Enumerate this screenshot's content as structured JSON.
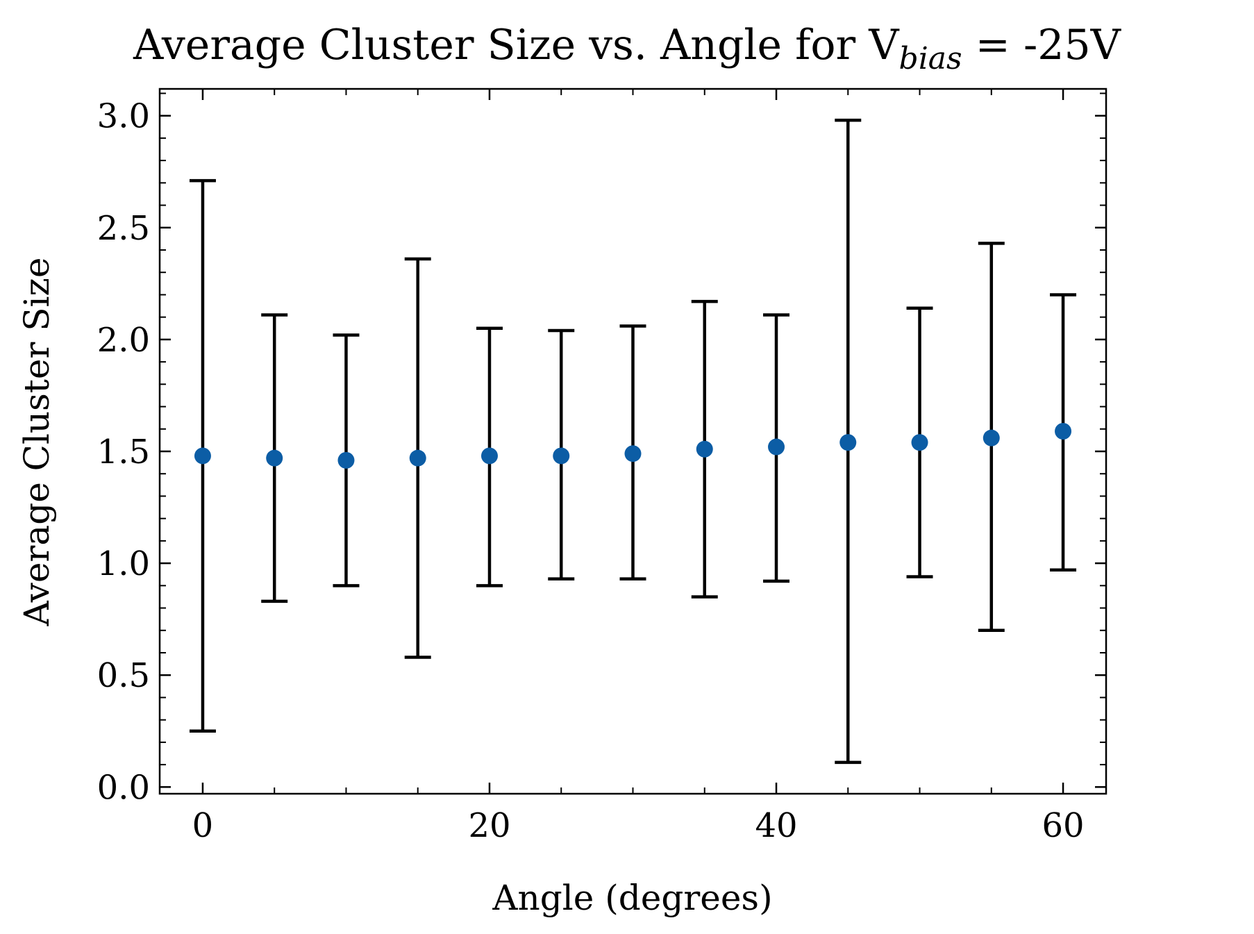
{
  "chart_data": {
    "type": "scatter",
    "title": "Average Cluster Size vs. Angle for V",
    "title_subscript": "bias",
    "title_suffix": " = -25V",
    "xlabel": "Angle (degrees)",
    "ylabel": "Average Cluster Size",
    "xlim": [
      -3,
      63
    ],
    "ylim": [
      -0.03,
      3.12
    ],
    "xticks": [
      0,
      20,
      40,
      60
    ],
    "xtick_labels": [
      "0",
      "20",
      "40",
      "60"
    ],
    "yticks": [
      0.0,
      0.5,
      1.0,
      1.5,
      2.0,
      2.5,
      3.0
    ],
    "ytick_labels": [
      "0.0",
      "0.5",
      "1.0",
      "1.5",
      "2.0",
      "2.5",
      "3.0"
    ],
    "grid": false,
    "marker_color": "#0c5da5",
    "errorbar_color": "#000000",
    "series": [
      {
        "x": [
          0,
          5,
          10,
          15,
          20,
          25,
          30,
          35,
          40,
          45,
          50,
          55,
          60
        ],
        "y": [
          1.48,
          1.47,
          1.46,
          1.47,
          1.48,
          1.48,
          1.49,
          1.51,
          1.52,
          1.54,
          1.54,
          1.56,
          1.59
        ],
        "yerr_low": [
          0.25,
          0.83,
          0.9,
          0.58,
          0.9,
          0.93,
          0.93,
          0.85,
          0.92,
          0.11,
          0.94,
          0.7,
          0.97
        ],
        "yerr_high": [
          2.71,
          2.11,
          2.02,
          2.36,
          2.05,
          2.04,
          2.06,
          2.17,
          2.11,
          2.98,
          2.14,
          2.43,
          2.2
        ]
      }
    ]
  }
}
